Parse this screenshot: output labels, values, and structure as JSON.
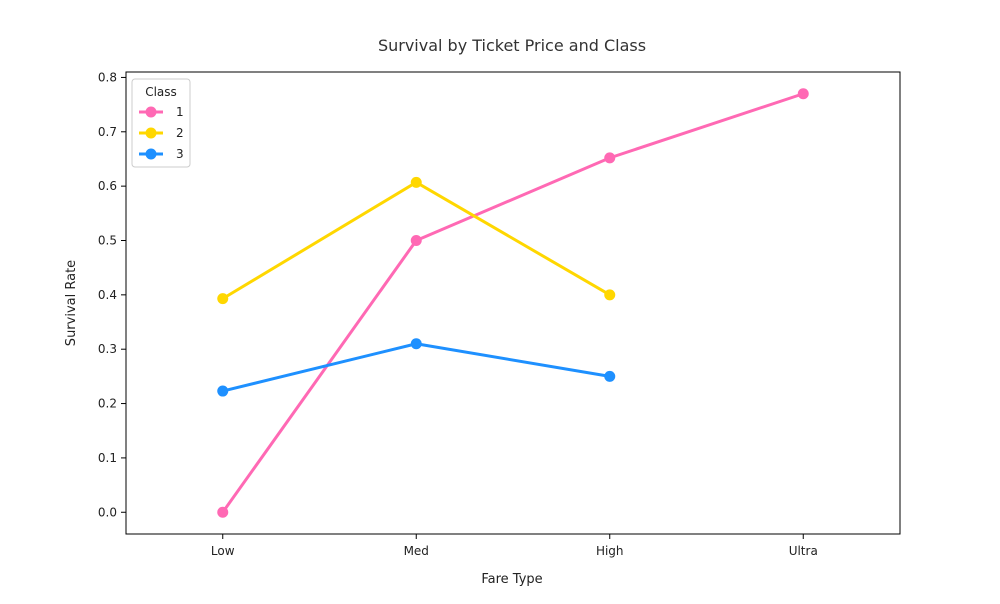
{
  "chart_data": {
    "type": "line",
    "title": "Survival by Ticket Price and Class",
    "xlabel": "Fare Type",
    "ylabel": "Survival Rate",
    "categories": [
      "Low",
      "Med",
      "High",
      "Ultra"
    ],
    "ylim": [
      -0.04,
      0.81
    ],
    "yticks": [
      0.0,
      0.1,
      0.2,
      0.3,
      0.4,
      0.5,
      0.6,
      0.7,
      0.8
    ],
    "grid": false,
    "legend": {
      "title": "Class",
      "placement": "top-left"
    },
    "series": [
      {
        "name": "1",
        "color": "#ff69b4",
        "values": [
          0.0,
          0.5,
          0.652,
          0.77
        ]
      },
      {
        "name": "2",
        "color": "#ffd700",
        "values": [
          0.393,
          0.607,
          0.4,
          null
        ]
      },
      {
        "name": "3",
        "color": "#1e90ff",
        "values": [
          0.223,
          0.31,
          0.25,
          null
        ]
      }
    ]
  }
}
